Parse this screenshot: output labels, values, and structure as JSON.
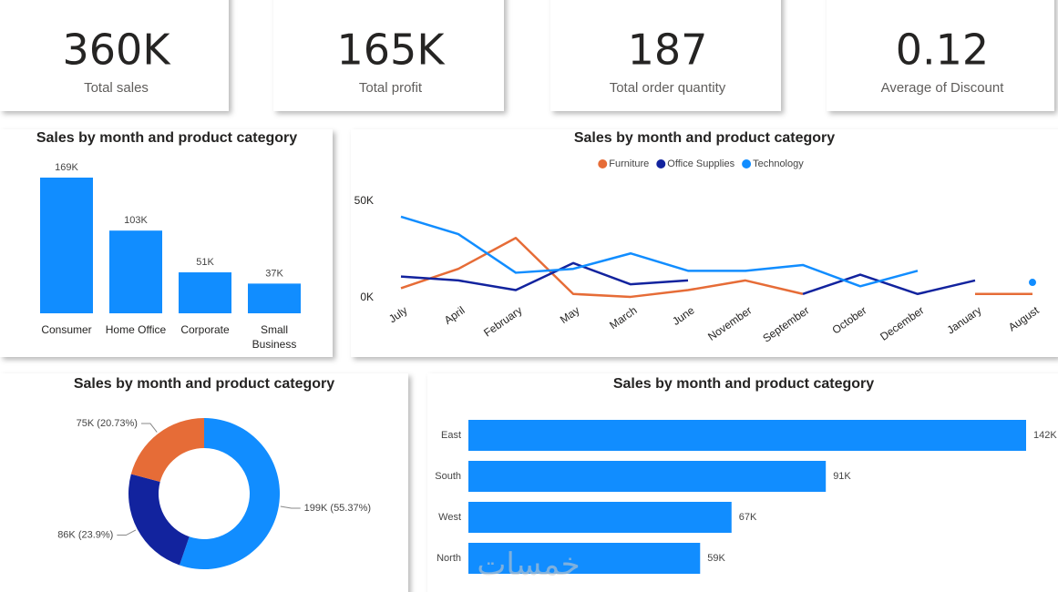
{
  "cards": [
    {
      "value": "360K",
      "label": "Total sales"
    },
    {
      "value": "165K",
      "label": "Total profit"
    },
    {
      "value": 187,
      "label": "Total order quantity"
    },
    {
      "value": 0.12,
      "label": "Average of Discount"
    }
  ],
  "chart_data": [
    {
      "type": "bar",
      "title": "Sales by month and product category",
      "categories": [
        "Consumer",
        "Home Office",
        "Corporate",
        "Small Business"
      ],
      "values": [
        169,
        103,
        51,
        37
      ],
      "value_labels": [
        "169K",
        "103K",
        "51K",
        "37K"
      ],
      "color": "#118dff"
    },
    {
      "type": "line",
      "title": "Sales by month and product category",
      "categories": [
        "July",
        "April",
        "February",
        "May",
        "March",
        "June",
        "November",
        "September",
        "October",
        "December",
        "January",
        "August"
      ],
      "series": [
        {
          "name": "Furniture",
          "color": "#e66c37",
          "values": [
            5000,
            15000,
            31000,
            2000,
            500,
            4000,
            9000,
            2000,
            null,
            null,
            2000,
            2000
          ]
        },
        {
          "name": "Office Supplies",
          "color": "#12239e",
          "values": [
            11000,
            9000,
            4000,
            18000,
            7000,
            9000,
            null,
            2000,
            12000,
            2000,
            9000,
            null
          ]
        },
        {
          "name": "Technology",
          "color": "#118dff",
          "values": [
            42000,
            33000,
            13000,
            15000,
            23000,
            14000,
            14000,
            17000,
            6000,
            14000,
            null,
            8000
          ]
        }
      ],
      "ylim": [
        0,
        50000
      ],
      "yticks": [
        {
          "value": 0,
          "label": "0K"
        },
        {
          "value": 50000,
          "label": "50K"
        }
      ],
      "grid": false
    },
    {
      "type": "pie",
      "title": "Sales by month and product category",
      "donut": true,
      "values": [
        199,
        86,
        75
      ],
      "value_labels": [
        "199K (55.37%)",
        "86K (23.9%)",
        "75K (20.73%)"
      ],
      "colors": [
        "#118dff",
        "#12239e",
        "#e66c37"
      ]
    },
    {
      "type": "bar",
      "orientation": "horizontal",
      "title": "Sales by month and product category",
      "categories": [
        "East",
        "South",
        "West",
        "North"
      ],
      "values": [
        142,
        91,
        67,
        59
      ],
      "value_labels": [
        "142K",
        "91K",
        "67K",
        "59K"
      ],
      "color": "#118dff"
    }
  ],
  "watermark": "خمسات"
}
